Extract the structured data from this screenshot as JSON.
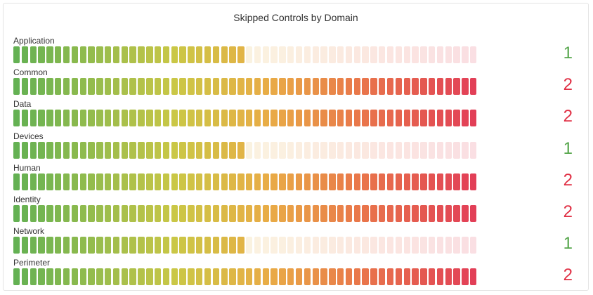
{
  "chart_data": {
    "type": "bar",
    "title": "Skipped Controls by Domain",
    "categories": [
      "Application",
      "Common",
      "Data",
      "Devices",
      "Human",
      "Identity",
      "Network",
      "Perimeter"
    ],
    "values": [
      1,
      2,
      2,
      1,
      2,
      2,
      1,
      2
    ],
    "xlim": [
      0,
      2
    ],
    "style": "bar-gauge",
    "colors": {
      "low": "#5cad4a",
      "mid": "#d6c23a",
      "high": "#e0354e",
      "low_value": "#56a64b",
      "high_value": "#e02f44"
    }
  }
}
